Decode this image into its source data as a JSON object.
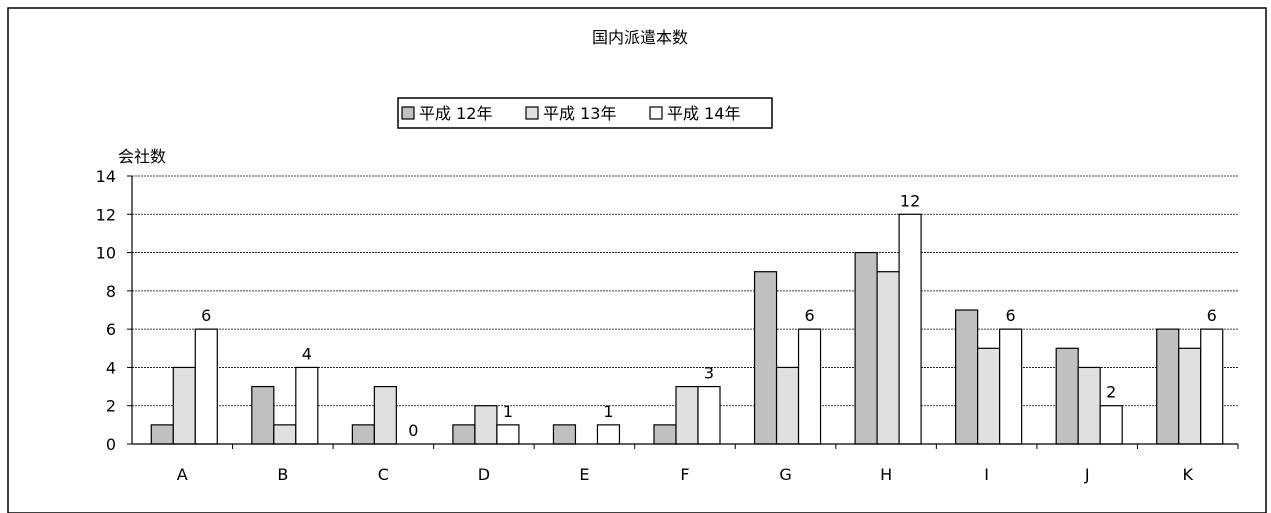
{
  "chart_data": {
    "type": "bar",
    "title": "国内派遣本数",
    "ylabel": "会社数",
    "xlabel": "",
    "ylim": [
      0,
      14
    ],
    "yticks": [
      0,
      2,
      4,
      6,
      8,
      10,
      12,
      14
    ],
    "grid": true,
    "legend_position": "top-center",
    "categories": [
      "A",
      "B",
      "C",
      "D",
      "E",
      "F",
      "G",
      "H",
      "I",
      "J",
      "K"
    ],
    "series": [
      {
        "name": "平成 12年",
        "color": "#c0c0c0",
        "values": [
          1,
          3,
          1,
          1,
          1,
          1,
          9,
          10,
          7,
          5,
          6
        ]
      },
      {
        "name": "平成 13年",
        "color": "#e0e0e0",
        "values": [
          4,
          1,
          3,
          2,
          0,
          3,
          4,
          9,
          5,
          4,
          5
        ]
      },
      {
        "name": "平成 14年",
        "color": "#ffffff",
        "values": [
          6,
          4,
          0,
          1,
          1,
          3,
          6,
          12,
          6,
          2,
          6
        ]
      }
    ],
    "data_labels_series": 2
  }
}
